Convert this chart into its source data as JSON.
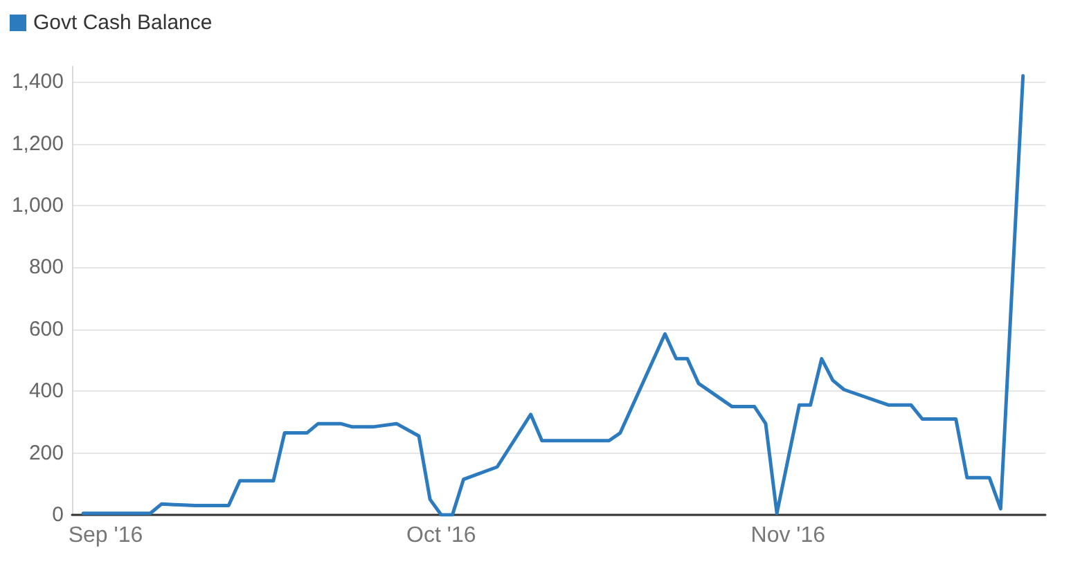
{
  "chart_data": {
    "type": "line",
    "series": [
      {
        "name": "Govt Cash Balance",
        "color": "#2d7bbf",
        "x": [
          "2016-08-30",
          "2016-09-05",
          "2016-09-06",
          "2016-09-09",
          "2016-09-12",
          "2016-09-13",
          "2016-09-16",
          "2016-09-17",
          "2016-09-19",
          "2016-09-20",
          "2016-09-22",
          "2016-09-23",
          "2016-09-25",
          "2016-09-27",
          "2016-09-29",
          "2016-09-30",
          "2016-10-01",
          "2016-10-02",
          "2016-10-03",
          "2016-10-06",
          "2016-10-09",
          "2016-10-10",
          "2016-10-16",
          "2016-10-17",
          "2016-10-21",
          "2016-10-22",
          "2016-10-23",
          "2016-10-24",
          "2016-10-27",
          "2016-10-29",
          "2016-10-30",
          "2016-10-31",
          "2016-11-02",
          "2016-11-03",
          "2016-11-04",
          "2016-11-05",
          "2016-11-06",
          "2016-11-10",
          "2016-11-12",
          "2016-11-13",
          "2016-11-16",
          "2016-11-17",
          "2016-11-19",
          "2016-11-20",
          "2016-11-22"
        ],
        "values": [
          5,
          5,
          35,
          30,
          30,
          110,
          110,
          265,
          265,
          295,
          295,
          285,
          285,
          295,
          255,
          50,
          0,
          0,
          115,
          155,
          325,
          240,
          240,
          265,
          585,
          505,
          505,
          425,
          350,
          350,
          295,
          5,
          355,
          355,
          505,
          435,
          405,
          355,
          355,
          310,
          310,
          120,
          120,
          20,
          1420
        ]
      }
    ],
    "xlim": [
      "2016-08-29",
      "2016-11-24"
    ],
    "xticks": [
      {
        "value": "2016-09-01",
        "label": "Sep '16"
      },
      {
        "value": "2016-10-01",
        "label": "Oct '16"
      },
      {
        "value": "2016-11-01",
        "label": "Nov '16"
      }
    ],
    "ylim": [
      0,
      1450
    ],
    "yticks": [
      0,
      200,
      400,
      600,
      800,
      {
        "value": 1000,
        "label": "1,000"
      },
      {
        "value": 1200,
        "label": "1,200"
      },
      {
        "value": 1400,
        "label": "1,400"
      }
    ],
    "grid": "y",
    "legend": "top left",
    "marker": "none",
    "line_style": "solid"
  }
}
